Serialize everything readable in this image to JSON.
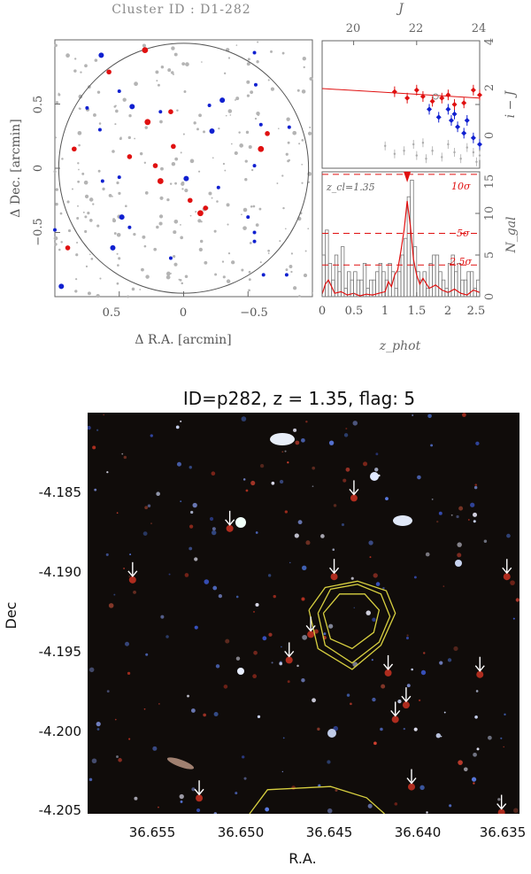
{
  "top": {
    "title": "Cluster ID : D1-282",
    "sky_map": {
      "xlabel": "Δ R.A. [arcmin]",
      "ylabel": "Δ Dec. [arcmin]",
      "xticks": [
        "0.5",
        "0",
        "−0.5"
      ],
      "yticks": [
        "0.5",
        "0",
        "−0.5"
      ]
    },
    "cmd": {
      "top_xlabel": "J",
      "ylabel": "i − J",
      "xticks": [
        "20",
        "22",
        "24"
      ],
      "yticks": [
        "0",
        "2",
        "4"
      ]
    },
    "zhist": {
      "xlabel": "z_phot",
      "ylabel": "N_gal",
      "annotation": "z_cl=1.35",
      "sigma_labels": [
        "10σ",
        "5σ",
        "2.5σ"
      ],
      "xticks": [
        "0",
        "0.5",
        "1",
        "1.5",
        "2",
        "2.5"
      ],
      "yticks": [
        "0",
        "5",
        "10",
        "15"
      ]
    }
  },
  "bottom": {
    "title": "ID=p282, z = 1.35, flag: 5",
    "xlabel": "R.A.",
    "ylabel": "Dec",
    "xticks": [
      "36.655",
      "36.650",
      "36.645",
      "36.640",
      "36.635"
    ],
    "yticks": [
      "-4.185",
      "-4.190",
      "-4.195",
      "-4.200",
      "-4.205"
    ]
  },
  "chart_data": [
    {
      "type": "scatter",
      "name": "sky map",
      "xlim": [
        1.0,
        -1.0
      ],
      "ylim": [
        -1.0,
        1.0
      ],
      "circle_radius": 0.97,
      "colors": {
        "red": "#e01010",
        "blue": "#1020d0",
        "grey": "#b4b4b4"
      },
      "red_points": [
        [
          0.3,
          0.92
        ],
        [
          0.85,
          0.15
        ],
        [
          0.1,
          0.44
        ],
        [
          0.28,
          0.36
        ],
        [
          0.08,
          0.17
        ],
        [
          0.42,
          0.09
        ],
        [
          -0.6,
          0.15
        ],
        [
          -0.65,
          0.27
        ],
        [
          0.22,
          0.02
        ],
        [
          0.18,
          -0.1
        ],
        [
          -0.05,
          -0.25
        ],
        [
          -0.17,
          -0.31
        ],
        [
          -0.13,
          -0.35
        ],
        [
          0.9,
          -0.62
        ],
        [
          0.58,
          0.75
        ]
      ],
      "blue_points": [
        [
          0.64,
          0.88
        ],
        [
          -0.55,
          0.9
        ],
        [
          -0.56,
          0.65
        ],
        [
          0.5,
          0.6
        ],
        [
          0.4,
          0.48
        ],
        [
          0.75,
          0.47
        ],
        [
          0.18,
          0.44
        ],
        [
          -0.2,
          0.49
        ],
        [
          -0.3,
          0.53
        ],
        [
          -0.82,
          0.32
        ],
        [
          -0.6,
          0.34
        ],
        [
          0.65,
          0.3
        ],
        [
          -0.22,
          0.29
        ],
        [
          -0.55,
          0.02
        ],
        [
          0.5,
          -0.07
        ],
        [
          0.63,
          -0.1
        ],
        [
          -0.02,
          -0.08
        ],
        [
          0.42,
          -0.46
        ],
        [
          -0.27,
          -0.15
        ],
        [
          -0.5,
          -0.38
        ],
        [
          0.48,
          -0.38
        ],
        [
          1.0,
          -0.48
        ],
        [
          -0.55,
          -0.5
        ],
        [
          -0.55,
          -0.57
        ],
        [
          0.55,
          -0.62
        ],
        [
          0.1,
          -0.7
        ],
        [
          -0.62,
          -0.83
        ],
        [
          -0.8,
          -0.83
        ],
        [
          0.95,
          -0.92
        ]
      ]
    },
    {
      "type": "scatter",
      "name": "colour-magnitude",
      "xlim": [
        19,
        24
      ],
      "ylim": [
        0,
        4
      ],
      "red_sequence_line": [
        [
          19,
          2.5
        ],
        [
          24,
          2.2
        ]
      ],
      "red_points": [
        [
          21.3,
          2.4
        ],
        [
          21.7,
          2.2
        ],
        [
          22.0,
          2.45
        ],
        [
          22.2,
          2.25
        ],
        [
          22.5,
          2.1
        ],
        [
          22.8,
          2.2
        ],
        [
          23.0,
          2.3
        ],
        [
          23.2,
          2.0
        ],
        [
          23.5,
          2.05
        ],
        [
          23.8,
          2.45
        ],
        [
          24.0,
          2.3
        ]
      ],
      "blue_points": [
        [
          22.4,
          1.85
        ],
        [
          22.7,
          1.6
        ],
        [
          23.0,
          1.85
        ],
        [
          23.1,
          1.5
        ],
        [
          23.3,
          1.3
        ],
        [
          23.5,
          1.1
        ],
        [
          23.6,
          1.5
        ],
        [
          23.8,
          0.95
        ],
        [
          24.0,
          0.75
        ],
        [
          23.2,
          1.7
        ]
      ],
      "open_points": [
        [
          22.6,
          2.25
        ]
      ],
      "grey_points": [
        [
          21.0,
          0.7
        ],
        [
          21.3,
          0.45
        ],
        [
          21.6,
          0.55
        ],
        [
          22.0,
          0.4
        ],
        [
          22.2,
          0.8
        ],
        [
          22.5,
          0.55
        ],
        [
          22.8,
          0.35
        ],
        [
          23.0,
          0.75
        ],
        [
          23.2,
          0.5
        ],
        [
          23.4,
          0.3
        ],
        [
          23.6,
          0.65
        ],
        [
          23.8,
          0.5
        ],
        [
          24.0,
          0.4
        ],
        [
          22.3,
          0.3
        ],
        [
          21.9,
          0.75
        ],
        [
          23.9,
          0.2
        ]
      ]
    },
    {
      "type": "bar",
      "name": "photo-z histogram",
      "xlim": [
        0,
        2.5
      ],
      "ylim": [
        0,
        15
      ],
      "bin_width": 0.05,
      "z_cl": 1.35,
      "sigma_levels": [
        {
          "label": "10σ",
          "value": 14.7
        },
        {
          "label": "5σ",
          "value": 7.6
        },
        {
          "label": "2.5σ",
          "value": 3.8
        }
      ],
      "counts": [
        5,
        8,
        4,
        2,
        5,
        3,
        6,
        1,
        3,
        2,
        3,
        2,
        2,
        4,
        1,
        2,
        2,
        3,
        4,
        3,
        2,
        4,
        3,
        1,
        3,
        5,
        7,
        12,
        14,
        6,
        3,
        2,
        3,
        1,
        4,
        5,
        5,
        3,
        2,
        1,
        4,
        5,
        3,
        4,
        2,
        2,
        3,
        3,
        1,
        2
      ],
      "density_curve": [
        [
          0,
          0.3
        ],
        [
          0.05,
          1.5
        ],
        [
          0.1,
          2.0
        ],
        [
          0.15,
          1.2
        ],
        [
          0.2,
          0.4
        ],
        [
          0.3,
          0.6
        ],
        [
          0.4,
          0.2
        ],
        [
          0.5,
          0.4
        ],
        [
          0.6,
          0.1
        ],
        [
          0.7,
          0.3
        ],
        [
          0.8,
          0.2
        ],
        [
          0.9,
          0.4
        ],
        [
          1.0,
          0.6
        ],
        [
          1.05,
          1.8
        ],
        [
          1.1,
          1.2
        ],
        [
          1.15,
          2.6
        ],
        [
          1.2,
          3.2
        ],
        [
          1.25,
          5.5
        ],
        [
          1.3,
          8.0
        ],
        [
          1.35,
          11.5
        ],
        [
          1.4,
          8.5
        ],
        [
          1.45,
          4.5
        ],
        [
          1.5,
          2.6
        ],
        [
          1.55,
          1.5
        ],
        [
          1.6,
          2.2
        ],
        [
          1.7,
          1.0
        ],
        [
          1.8,
          1.4
        ],
        [
          1.9,
          0.8
        ],
        [
          2.0,
          0.5
        ],
        [
          2.1,
          0.9
        ],
        [
          2.2,
          0.4
        ],
        [
          2.3,
          0.2
        ],
        [
          2.4,
          0.8
        ],
        [
          2.5,
          0.5
        ]
      ]
    },
    {
      "type": "scatter",
      "name": "colour image with member arrows",
      "xlim": [
        36.659,
        36.635
      ],
      "ylim": [
        -4.2055,
        -4.1805
      ],
      "arrows": [
        [
          36.6565,
          -4.1907
        ],
        [
          36.6511,
          -4.1875
        ],
        [
          36.6442,
          -4.1856
        ],
        [
          36.6453,
          -4.1905
        ],
        [
          36.6466,
          -4.1941
        ],
        [
          36.6478,
          -4.1957
        ],
        [
          36.6423,
          -4.1965
        ],
        [
          36.6413,
          -4.1985
        ],
        [
          36.6419,
          -4.1994
        ],
        [
          36.6372,
          -4.1966
        ],
        [
          36.6357,
          -4.1905
        ],
        [
          36.6528,
          -4.2043
        ],
        [
          36.641,
          -4.2036
        ],
        [
          36.636,
          -4.2052
        ]
      ],
      "contours": [
        [
          [
            36.6459,
            -4.193
          ],
          [
            36.645,
            -4.1918
          ],
          [
            36.6436,
            -4.1918
          ],
          [
            36.6428,
            -4.1928
          ],
          [
            36.6431,
            -4.1942
          ],
          [
            36.6443,
            -4.1952
          ],
          [
            36.6455,
            -4.1946
          ],
          [
            36.6459,
            -4.193
          ]
        ],
        [
          [
            36.6462,
            -4.193
          ],
          [
            36.6455,
            -4.1915
          ],
          [
            36.644,
            -4.1912
          ],
          [
            36.6427,
            -4.1918
          ],
          [
            36.6422,
            -4.1932
          ],
          [
            36.6428,
            -4.1948
          ],
          [
            36.6443,
            -4.1961
          ],
          [
            36.6458,
            -4.195
          ],
          [
            36.6462,
            -4.193
          ]
        ],
        [
          [
            36.6467,
            -4.1928
          ],
          [
            36.6458,
            -4.1914
          ],
          [
            36.644,
            -4.191
          ],
          [
            36.6424,
            -4.1916
          ],
          [
            36.6419,
            -4.193
          ],
          [
            36.6427,
            -4.195
          ],
          [
            36.6443,
            -4.1965
          ],
          [
            36.6462,
            -4.1952
          ],
          [
            36.6467,
            -4.1928
          ]
        ],
        [
          [
            36.65,
            -4.2055
          ],
          [
            36.649,
            -4.204
          ],
          [
            36.6455,
            -4.2038
          ],
          [
            36.6435,
            -4.2045
          ],
          [
            36.6425,
            -4.2055
          ]
        ]
      ]
    }
  ]
}
